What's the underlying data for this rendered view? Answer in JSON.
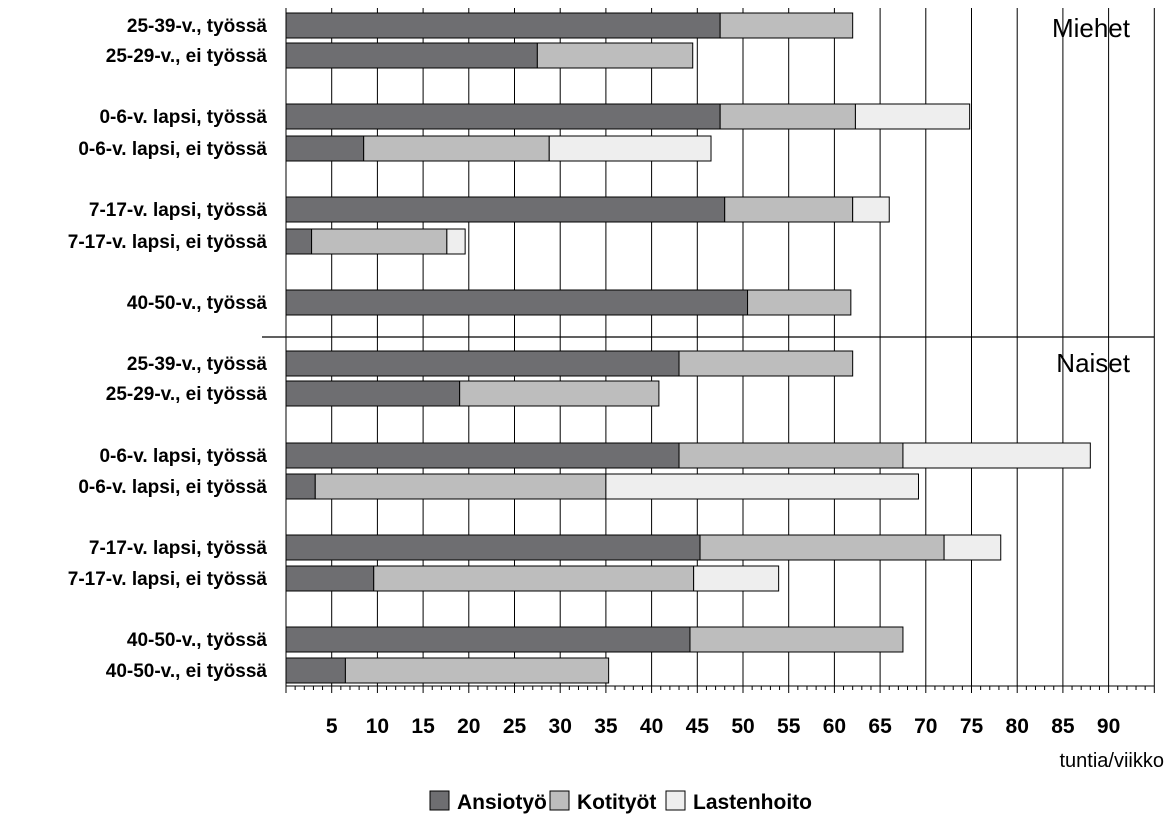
{
  "chart_data": {
    "type": "bar",
    "orientation": "horizontal",
    "stacked": true,
    "xlim": [
      0,
      95
    ],
    "x_ticks": [
      5,
      10,
      15,
      20,
      25,
      30,
      35,
      40,
      45,
      50,
      55,
      60,
      65,
      70,
      75,
      80,
      85,
      90
    ],
    "x_unit_label": "tuntia/viikko",
    "grid": "vertical",
    "legend_position": "bottom-center",
    "series": [
      {
        "name": "Ansiotyö",
        "color": "#6e6e71"
      },
      {
        "name": "Kotityöt",
        "color": "#bdbdbd"
      },
      {
        "name": "Lastenhoito",
        "color": "#eeeeee"
      }
    ],
    "panels": [
      {
        "title": "Miehet",
        "rows": [
          {
            "label": "25-39-v., työssä",
            "values": [
              47.5,
              14.5,
              0
            ]
          },
          {
            "label": "25-29-v., ei työssä",
            "values": [
              27.5,
              17.0,
              0
            ]
          },
          {
            "label": "0-6-v. lapsi, työssä",
            "values": [
              47.5,
              14.8,
              12.5
            ]
          },
          {
            "label": "0-6-v. lapsi, ei työssä",
            "values": [
              8.5,
              20.3,
              17.7
            ]
          },
          {
            "label": "7-17-v. lapsi, työssä",
            "values": [
              48.0,
              14.0,
              4.0
            ]
          },
          {
            "label": "7-17-v. lapsi, ei työssä",
            "values": [
              2.8,
              14.8,
              2.0
            ]
          },
          {
            "label": "40-50-v., työssä",
            "values": [
              50.5,
              11.3,
              0
            ]
          }
        ]
      },
      {
        "title": "Naiset",
        "rows": [
          {
            "label": "25-39-v., työssä",
            "values": [
              43.0,
              19.0,
              0
            ]
          },
          {
            "label": "25-29-v., ei työssä",
            "values": [
              19.0,
              21.8,
              0
            ]
          },
          {
            "label": "0-6-v. lapsi, työssä",
            "values": [
              43.0,
              24.5,
              20.5
            ]
          },
          {
            "label": "0-6-v. lapsi, ei työssä",
            "values": [
              3.2,
              31.8,
              34.2
            ]
          },
          {
            "label": "7-17-v. lapsi, työssä",
            "values": [
              45.3,
              26.7,
              6.2
            ]
          },
          {
            "label": "7-17-v. lapsi, ei työssä",
            "values": [
              9.6,
              35.0,
              9.3
            ]
          },
          {
            "label": "40-50-v., työssä",
            "values": [
              44.2,
              23.3,
              0
            ]
          },
          {
            "label": "40-50-v., ei työssä",
            "values": [
              6.5,
              28.8,
              0
            ]
          }
        ]
      }
    ]
  }
}
